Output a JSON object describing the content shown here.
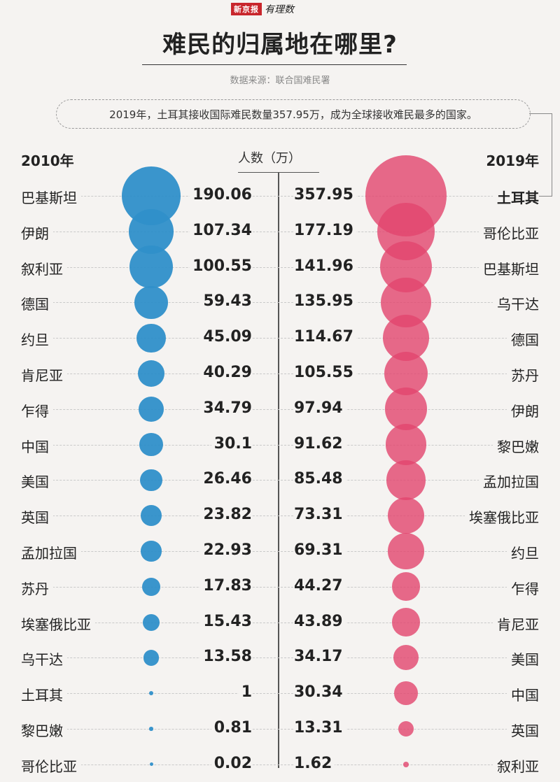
{
  "brand": {
    "box": "新京报",
    "script": "有理数"
  },
  "title": "难民的归属地在哪里?",
  "source": "数据来源：联合国难民署",
  "callout": "2019年，土耳其接收国际难民数量357.95万，成为全球接收难民最多的国家。",
  "unit_label": "人数（万）",
  "colors": {
    "left": "#2f8fc9",
    "right": "#e2456e",
    "background": "#f5f3f1"
  },
  "chart_data": [
    {
      "type": "bubble",
      "year": "2010年",
      "categories": [
        "巴基斯坦",
        "伊朗",
        "叙利亚",
        "德国",
        "约旦",
        "肯尼亚",
        "乍得",
        "中国",
        "美国",
        "英国",
        "孟加拉国",
        "苏丹",
        "埃塞俄比亚",
        "乌干达",
        "土耳其",
        "黎巴嫩",
        "哥伦比亚"
      ],
      "value_labels": [
        "190.06",
        "107.34",
        "100.55",
        "59.43",
        "45.09",
        "40.29",
        "34.79",
        "30.1",
        "26.46",
        "23.82",
        "22.93",
        "17.83",
        "15.43",
        "13.58",
        "1",
        "0.81",
        "0.02"
      ],
      "values": [
        190.06,
        107.34,
        100.55,
        59.43,
        45.09,
        40.29,
        34.79,
        30.1,
        26.46,
        23.82,
        22.93,
        17.83,
        15.43,
        13.58,
        1,
        0.81,
        0.02
      ]
    },
    {
      "type": "bubble",
      "year": "2019年",
      "categories": [
        "土耳其",
        "哥伦比亚",
        "巴基斯坦",
        "乌干达",
        "德国",
        "苏丹",
        "伊朗",
        "黎巴嫩",
        "孟加拉国",
        "埃塞俄比亚",
        "约旦",
        "乍得",
        "肯尼亚",
        "美国",
        "中国",
        "英国",
        "叙利亚"
      ],
      "value_labels": [
        "357.95",
        "177.19",
        "141.96",
        "135.95",
        "114.67",
        "105.55",
        "97.94",
        "91.62",
        "85.48",
        "73.31",
        "69.31",
        "44.27",
        "43.89",
        "34.17",
        "30.34",
        "13.31",
        "1.62"
      ],
      "values": [
        357.95,
        177.19,
        141.96,
        135.95,
        114.67,
        105.55,
        97.94,
        91.62,
        85.48,
        73.31,
        69.31,
        44.27,
        43.89,
        34.17,
        30.34,
        13.31,
        1.62
      ]
    }
  ]
}
